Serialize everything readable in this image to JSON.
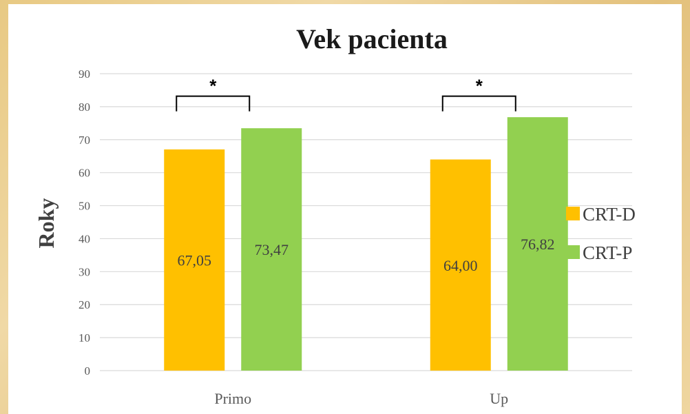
{
  "chart_data": {
    "type": "bar",
    "title": "Vek pacienta",
    "xlabel": "",
    "ylabel": "Roky",
    "categories": [
      "Primo",
      "Up"
    ],
    "series": [
      {
        "name": "CRT-D",
        "values": [
          67.05,
          64.0
        ],
        "labels": [
          "67,05",
          "64,00"
        ],
        "color": "#ffc000"
      },
      {
        "name": "CRT-P",
        "values": [
          73.47,
          76.82
        ],
        "labels": [
          "73,47",
          "76,82"
        ],
        "color": "#92d050"
      }
    ],
    "ylim": [
      0,
      90
    ],
    "yticks": [
      0,
      10,
      20,
      30,
      40,
      50,
      60,
      70,
      80,
      90
    ],
    "grid": true,
    "legend_position": "right",
    "annotations": [
      {
        "category": "Primo",
        "text": "*"
      },
      {
        "category": "Up",
        "text": "*"
      }
    ]
  }
}
